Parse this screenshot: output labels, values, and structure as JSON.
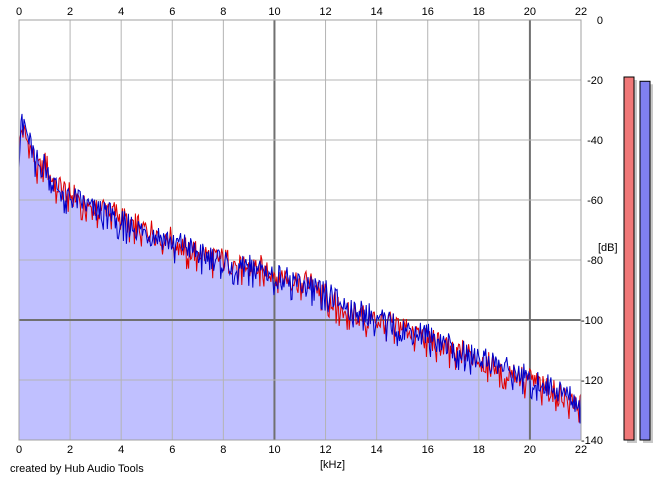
{
  "chart_data": {
    "type": "area",
    "xlabel": "[kHz]",
    "ylabel": "[dB]",
    "x_ticks": [
      "0",
      "2",
      "4",
      "6",
      "8",
      "10",
      "12",
      "14",
      "16",
      "18",
      "20",
      "22"
    ],
    "y_ticks": [
      "0",
      "-20",
      "-40",
      "-60",
      "-80",
      "-100",
      "-120",
      "-140"
    ],
    "xlim": [
      0,
      22
    ],
    "ylim": [
      -140,
      0
    ],
    "grid": true,
    "series": [
      {
        "color": "#e00000",
        "x": [
          0,
          0.1,
          0.3,
          0.5,
          0.8,
          1.0,
          1.2,
          1.5,
          2.0,
          2.5,
          3.0,
          3.5,
          4.0,
          4.5,
          5.0,
          5.5,
          6.0,
          6.5,
          7.0,
          7.5,
          8.0,
          8.5,
          9.0,
          9.5,
          10.0,
          10.5,
          11.0,
          11.5,
          12.0,
          12.5,
          13.0,
          13.5,
          14.0,
          14.5,
          15.0,
          15.5,
          16.0,
          16.5,
          17.0,
          17.5,
          18.0,
          18.5,
          19.0,
          19.5,
          20.0,
          20.5,
          21.0,
          21.5,
          22.0
        ],
        "values": [
          -45,
          -36,
          -40,
          -44,
          -50,
          -46,
          -52,
          -55,
          -58,
          -60,
          -63,
          -62,
          -66,
          -68,
          -70,
          -71,
          -73,
          -76,
          -77,
          -79,
          -80,
          -81,
          -83,
          -82,
          -84,
          -86,
          -87,
          -88,
          -91,
          -95,
          -97,
          -99,
          -100,
          -101,
          -102,
          -104,
          -106,
          -108,
          -110,
          -111,
          -113,
          -115,
          -116,
          -118,
          -120,
          -122,
          -124,
          -126,
          -128
        ]
      },
      {
        "color": "#0000c8",
        "x": [
          0,
          0.1,
          0.3,
          0.5,
          0.8,
          1.0,
          1.2,
          1.5,
          2.0,
          2.5,
          3.0,
          3.5,
          4.0,
          4.5,
          5.0,
          5.5,
          6.0,
          6.5,
          7.0,
          7.5,
          8.0,
          8.5,
          9.0,
          9.5,
          10.0,
          10.5,
          11.0,
          11.5,
          12.0,
          12.5,
          13.0,
          13.5,
          14.0,
          14.5,
          15.0,
          15.5,
          16.0,
          16.5,
          17.0,
          17.5,
          18.0,
          18.5,
          19.0,
          19.5,
          20.0,
          20.5,
          21.0,
          21.5,
          22.0
        ],
        "values": [
          -45,
          -29,
          -38,
          -43,
          -49,
          -48,
          -53,
          -56,
          -59,
          -61,
          -64,
          -63,
          -67,
          -69,
          -71,
          -72,
          -74,
          -75,
          -78,
          -79,
          -80,
          -82,
          -82,
          -83,
          -85,
          -86,
          -88,
          -89,
          -90,
          -94,
          -96,
          -97,
          -99,
          -101,
          -103,
          -104,
          -105,
          -107,
          -109,
          -111,
          -112,
          -114,
          -116,
          -117,
          -119,
          -121,
          -123,
          -125,
          -128
        ]
      }
    ],
    "fill_color": "#c0c0ff"
  },
  "level_meters": [
    {
      "color": "#f07878",
      "level": 0.85
    },
    {
      "color": "#8080f0",
      "level": 0.84
    }
  ],
  "footer": {
    "credit": "created by Hub Audio Tools"
  }
}
